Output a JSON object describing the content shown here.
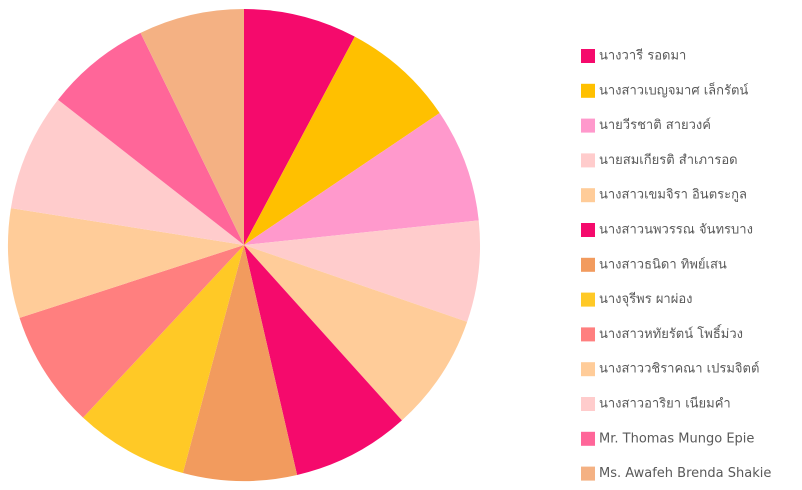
{
  "chart_data": {
    "type": "pie",
    "categories": [
      "นางวารี รอดมา",
      "นางสาวเบญจมาศ เล็กรัตน์",
      "นายวีรชาติ  สายวงค์",
      "นายสมเกียรติ สำเภารอด",
      "นางสาวเขมจิรา อินตระกูล",
      "นางสาวนพวรรณ จันทรบาง",
      "นางสาวธนิดา ทิพย์เสน",
      "นางจุรีพร ผาผ่อง",
      "นางสาวหทัยรัตน์ โพธิ์ม่วง",
      "นางสาววชิราคณา เปรมจิตต์",
      "นางสาวอาริยา เนียมคำ",
      "Mr. Thomas Mungo Epie",
      "Ms. Awafeh  Brenda  Shakie"
    ],
    "values": [
      28,
      28,
      28,
      25,
      29,
      29,
      28,
      28,
      29,
      27,
      29,
      26,
      26
    ],
    "colors": [
      "#f50a6c",
      "#ffc000",
      "#ff99cc",
      "#ffcccc",
      "#ffcc99",
      "#f50a6c",
      "#f29b5e",
      "#ffc926",
      "#ff7f7f",
      "#ffcc99",
      "#ffcccc",
      "#ff6699",
      "#f4b183"
    ],
    "legend": "right"
  }
}
